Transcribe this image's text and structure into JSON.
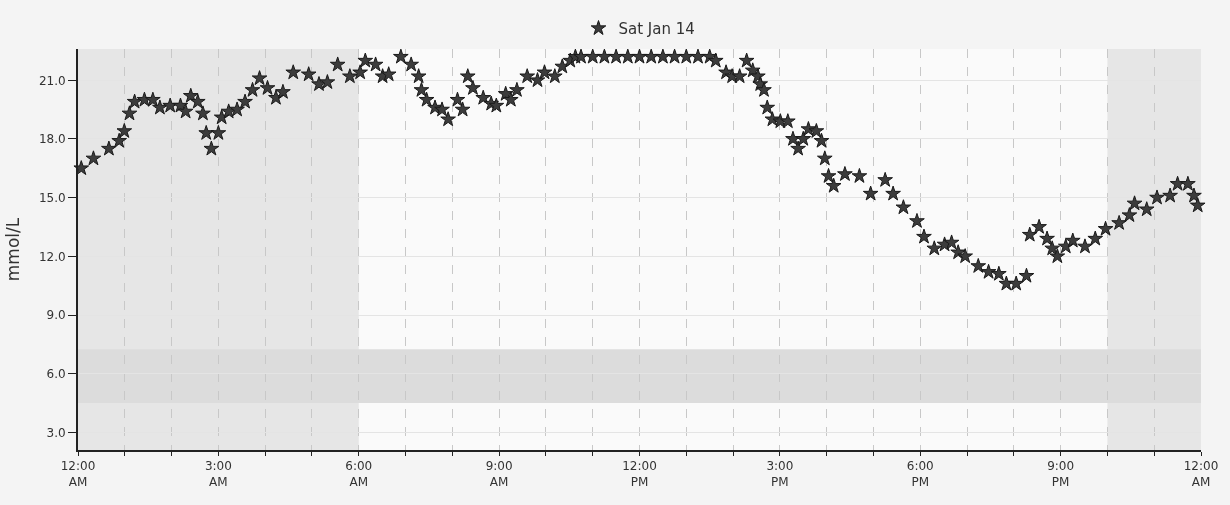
{
  "chart_data": {
    "type": "scatter",
    "ylabel": "mmol/L",
    "legend": "top",
    "grid": true,
    "marker": "star",
    "xlim": [
      0,
      24
    ],
    "ylim": [
      2.1,
      22.6
    ],
    "xticks": [
      {
        "value": 0,
        "label": "12:00\nAM"
      },
      {
        "value": 1,
        "label": null
      },
      {
        "value": 2,
        "label": null
      },
      {
        "value": 3,
        "label": "3:00\nAM"
      },
      {
        "value": 4,
        "label": null
      },
      {
        "value": 5,
        "label": null
      },
      {
        "value": 6,
        "label": "6:00\nAM"
      },
      {
        "value": 7,
        "label": null
      },
      {
        "value": 8,
        "label": null
      },
      {
        "value": 9,
        "label": "9:00\nAM"
      },
      {
        "value": 10,
        "label": null
      },
      {
        "value": 11,
        "label": null
      },
      {
        "value": 12,
        "label": "12:00\nPM"
      },
      {
        "value": 13,
        "label": null
      },
      {
        "value": 14,
        "label": null
      },
      {
        "value": 15,
        "label": "3:00\nPM"
      },
      {
        "value": 16,
        "label": null
      },
      {
        "value": 17,
        "label": null
      },
      {
        "value": 18,
        "label": "6:00\nPM"
      },
      {
        "value": 19,
        "label": null
      },
      {
        "value": 20,
        "label": null
      },
      {
        "value": 21,
        "label": "9:00\nPM"
      },
      {
        "value": 22,
        "label": null
      },
      {
        "value": 23,
        "label": null
      },
      {
        "value": 24,
        "label": "12:00\nAM"
      }
    ],
    "yticks": [
      {
        "value": 3,
        "label": "3.0"
      },
      {
        "value": 6,
        "label": "6.0"
      },
      {
        "value": 9,
        "label": "9.0"
      },
      {
        "value": 12,
        "label": "12.0"
      },
      {
        "value": 15,
        "label": "15.0"
      },
      {
        "value": 18,
        "label": "18.0"
      },
      {
        "value": 21,
        "label": "21.0"
      }
    ],
    "bands": [
      {
        "axis": "x",
        "from": 0,
        "to": 6,
        "color": "#e6e6e6"
      },
      {
        "axis": "x",
        "from": 22,
        "to": 24,
        "color": "#e6e6e6"
      },
      {
        "axis": "y",
        "from": 4.5,
        "to": 7.25,
        "color": "#dcdcdc"
      }
    ],
    "series": [
      {
        "name": "Sat Jan 14",
        "color": "#3c3c3c",
        "x": [
          0.07,
          0.33,
          0.66,
          0.88,
          0.99,
          1.1,
          1.21,
          1.42,
          1.6,
          1.75,
          1.97,
          2.19,
          2.3,
          2.41,
          2.56,
          2.67,
          2.74,
          2.85,
          3.0,
          3.07,
          3.22,
          3.4,
          3.57,
          3.73,
          3.88,
          4.05,
          4.23,
          4.38,
          4.6,
          4.93,
          5.15,
          5.33,
          5.55,
          5.81,
          6.03,
          6.14,
          6.36,
          6.51,
          6.64,
          6.9,
          7.12,
          7.28,
          7.34,
          7.45,
          7.63,
          7.78,
          7.91,
          8.11,
          8.22,
          8.33,
          8.44,
          8.66,
          8.83,
          8.94,
          9.14,
          9.25,
          9.38,
          9.6,
          9.82,
          9.97,
          10.19,
          10.35,
          10.52,
          10.63,
          10.75,
          11.0,
          11.25,
          11.5,
          11.75,
          12.0,
          12.25,
          12.5,
          12.75,
          13.0,
          13.25,
          13.5,
          13.63,
          13.85,
          13.98,
          14.14,
          14.29,
          14.42,
          14.53,
          14.58,
          14.66,
          14.73,
          14.84,
          15.01,
          15.17,
          15.28,
          15.39,
          15.5,
          15.61,
          15.78,
          15.89,
          15.96,
          16.04,
          16.15,
          16.39,
          16.7,
          16.94,
          17.25,
          17.42,
          17.64,
          17.93,
          18.08,
          18.3,
          18.52,
          18.67,
          18.81,
          18.96,
          19.24,
          19.46,
          19.68,
          19.84,
          20.05,
          20.27,
          20.34,
          20.54,
          20.71,
          20.82,
          20.93,
          21.11,
          21.26,
          21.52,
          21.74,
          21.96,
          22.25,
          22.47,
          22.58,
          22.84,
          23.06,
          23.34,
          23.5,
          23.72,
          23.85,
          23.93
        ],
        "values": [
          16.5,
          17.0,
          17.5,
          17.9,
          18.4,
          19.3,
          19.9,
          20.0,
          20.0,
          19.6,
          19.7,
          19.7,
          19.4,
          20.2,
          19.9,
          19.3,
          18.3,
          17.5,
          18.3,
          19.1,
          19.4,
          19.5,
          19.9,
          20.5,
          21.1,
          20.6,
          20.1,
          20.4,
          21.4,
          21.3,
          20.8,
          20.9,
          21.8,
          21.2,
          21.4,
          22.0,
          21.8,
          21.2,
          21.3,
          22.2,
          21.8,
          21.2,
          20.5,
          20.0,
          19.6,
          19.5,
          19.0,
          20.0,
          19.5,
          21.2,
          20.6,
          20.1,
          19.8,
          19.7,
          20.3,
          20.0,
          20.5,
          21.2,
          21.0,
          21.4,
          21.2,
          21.7,
          22.0,
          22.2,
          22.2,
          22.2,
          22.2,
          22.2,
          22.2,
          22.2,
          22.2,
          22.2,
          22.2,
          22.2,
          22.2,
          22.2,
          22.0,
          21.4,
          21.2,
          21.2,
          22.0,
          21.5,
          21.2,
          20.8,
          20.5,
          19.6,
          19.0,
          18.9,
          18.9,
          18.0,
          17.5,
          18.0,
          18.5,
          18.4,
          17.9,
          17.0,
          16.1,
          15.6,
          16.2,
          16.1,
          15.2,
          15.9,
          15.2,
          14.5,
          13.8,
          13.0,
          12.4,
          12.6,
          12.7,
          12.2,
          12.0,
          11.5,
          11.2,
          11.1,
          10.6,
          10.6,
          11.0,
          13.1,
          13.5,
          12.9,
          12.4,
          12.0,
          12.5,
          12.8,
          12.5,
          12.9,
          13.4,
          13.7,
          14.1,
          14.7,
          14.4,
          15.0,
          15.1,
          15.7,
          15.7,
          15.1,
          14.6
        ]
      }
    ]
  }
}
